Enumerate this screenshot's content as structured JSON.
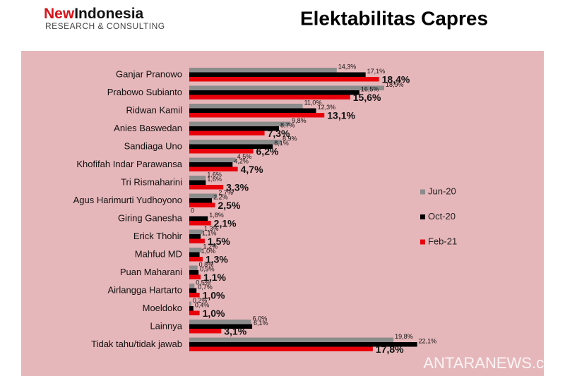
{
  "header": {
    "brand_first": "New",
    "brand_second": "Indonesia",
    "tagline": "RESEARCH & CONSULTING"
  },
  "watermark": "ANTARANEWS.com",
  "chart_data": {
    "type": "bar",
    "orientation": "horizontal",
    "title": "Elektabilitas Capres",
    "categories": [
      "Ganjar Pranowo",
      "Prabowo Subianto",
      "Ridwan Kamil",
      "Anies Baswedan",
      "Sandiaga Uno",
      "Khofifah Indar Parawansa",
      "Tri Rismaharini",
      "Agus Harimurti Yudhoyono",
      "Giring Ganesha",
      "Erick Thohir",
      "Mahfud MD",
      "Puan Maharani",
      "Airlangga Hartarto",
      "Moeldoko",
      "Lainnya",
      "Tidak tahu/tidak jawab"
    ],
    "series": [
      {
        "name": "Jun-20",
        "color": "#8c8c8c",
        "values": [
          14.3,
          18.9,
          11.0,
          9.8,
          8.9,
          4.5,
          1.6,
          2.7,
          0,
          1.3,
          1.2,
          0.8,
          0.5,
          0.2,
          6.0,
          19.8
        ],
        "value_labels": [
          "14,3%",
          "18,9%",
          "11,0%",
          "9,8%",
          "8,9%",
          "4,5%",
          "1,6%",
          "2,7%",
          "0",
          "1,3%",
          "1,2%",
          "0,8%",
          "0,5%",
          "0,2%",
          "6,0%",
          "19,8%"
        ]
      },
      {
        "name": "Oct-20",
        "color": "#000000",
        "values": [
          17.1,
          16.5,
          12.3,
          8.7,
          8.1,
          4.2,
          1.6,
          2.2,
          1.8,
          1.1,
          1.0,
          0.9,
          0.7,
          0.4,
          6.1,
          22.1
        ],
        "value_labels": [
          "17,1%",
          "16,5%",
          "12,3%",
          "8,7%",
          "8,1%",
          "4,2%",
          "1,6%",
          "2,2%",
          "1,8%",
          "1,1%",
          "1,0%",
          "0,9%",
          "0,7%",
          "0,4%",
          "6,1%",
          "22,1%"
        ]
      },
      {
        "name": "Feb-21",
        "color": "#e8000b",
        "values": [
          18.4,
          15.6,
          13.1,
          7.3,
          6.2,
          4.7,
          3.3,
          2.5,
          2.1,
          1.5,
          1.3,
          1.1,
          1.0,
          1.0,
          3.1,
          17.8
        ],
        "value_labels": [
          "18,4%",
          "15,6%",
          "13,1%",
          "7,3%",
          "6,2%",
          "4,7%",
          "3,3%",
          "2,5%",
          "2,1%",
          "1,5%",
          "1,3%",
          "1,1%",
          "1,0%",
          "1,0%",
          "3,1%",
          "17,8%"
        ]
      }
    ],
    "xlim": [
      0,
      25
    ],
    "grid": false,
    "legend": "right"
  }
}
